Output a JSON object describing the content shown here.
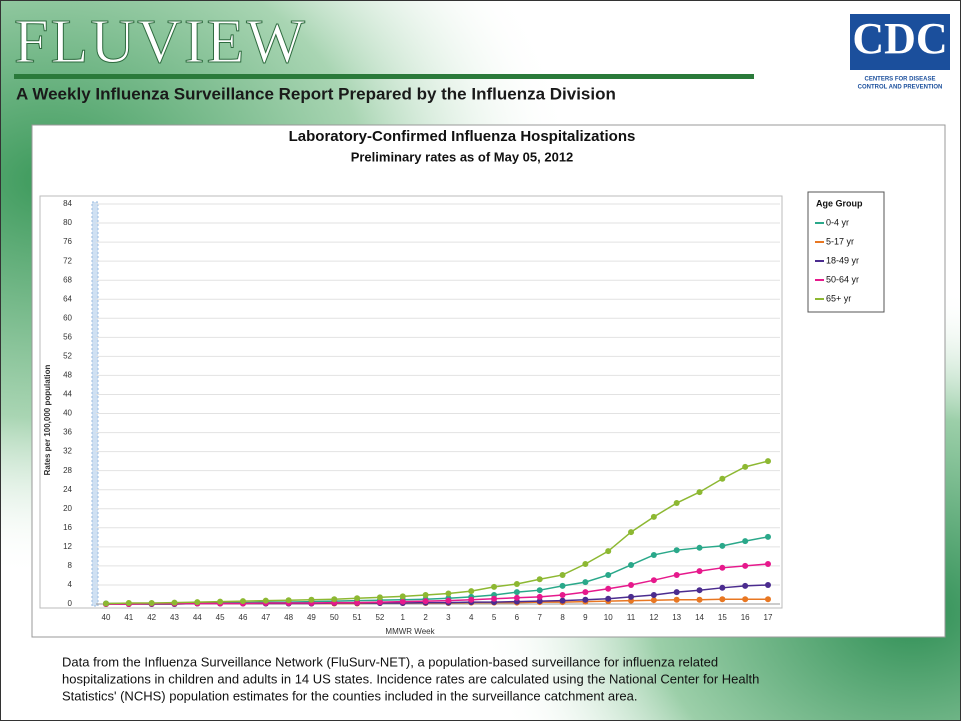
{
  "header": {
    "title": "FLUVIEW",
    "subtitle": "A Weekly Influenza Surveillance Report Prepared by the Influenza Division"
  },
  "logo": {
    "text": "CDC",
    "tagline": [
      "CENTERS FOR DISEASE",
      "CONTROL AND PREVENTION"
    ]
  },
  "chart_data": {
    "type": "line",
    "title": "Laboratory-Confirmed Influenza Hospitalizations",
    "subtitle": "Preliminary rates as of May 05, 2012",
    "x_label": "MMWR Week",
    "y_label": "Rates per 100,000 population",
    "legend_title": "Age Group",
    "legend_position": "right",
    "grid": true,
    "categories": [
      "40",
      "41",
      "42",
      "43",
      "44",
      "45",
      "46",
      "47",
      "48",
      "49",
      "50",
      "51",
      "52",
      "1",
      "2",
      "3",
      "4",
      "5",
      "6",
      "7",
      "8",
      "9",
      "10",
      "11",
      "12",
      "13",
      "14",
      "15",
      "16",
      "17"
    ],
    "ylim": [
      0,
      84
    ],
    "yticks": [
      0,
      4,
      8,
      12,
      16,
      20,
      24,
      28,
      32,
      36,
      40,
      44,
      48,
      52,
      56,
      60,
      64,
      68,
      72,
      76,
      80,
      84
    ],
    "series": [
      {
        "name": "0-4 yr",
        "color": "#2aa88a",
        "values": [
          0.1,
          0.1,
          0.1,
          0.2,
          0.2,
          0.3,
          0.3,
          0.4,
          0.4,
          0.5,
          0.6,
          0.7,
          0.8,
          0.9,
          1.0,
          1.2,
          1.5,
          1.9,
          2.5,
          2.9,
          3.8,
          4.6,
          6.1,
          8.2,
          10.3,
          11.3,
          11.8,
          12.2,
          13.2,
          14.1
        ]
      },
      {
        "name": "5-17 yr",
        "color": "#e87722",
        "values": [
          0.0,
          0.0,
          0.0,
          0.0,
          0.1,
          0.1,
          0.1,
          0.1,
          0.1,
          0.1,
          0.1,
          0.1,
          0.2,
          0.2,
          0.2,
          0.2,
          0.3,
          0.3,
          0.3,
          0.4,
          0.4,
          0.5,
          0.6,
          0.7,
          0.8,
          0.9,
          0.9,
          1.0,
          1.0,
          1.0
        ]
      },
      {
        "name": "18-49 yr",
        "color": "#4b2c8f",
        "values": [
          0.0,
          0.0,
          0.0,
          0.0,
          0.1,
          0.1,
          0.1,
          0.1,
          0.1,
          0.1,
          0.2,
          0.2,
          0.2,
          0.2,
          0.3,
          0.3,
          0.4,
          0.4,
          0.5,
          0.6,
          0.7,
          0.9,
          1.1,
          1.5,
          1.9,
          2.5,
          2.9,
          3.4,
          3.8,
          4.0
        ]
      },
      {
        "name": "50-64 yr",
        "color": "#e6198c",
        "values": [
          0.0,
          0.0,
          0.1,
          0.1,
          0.1,
          0.1,
          0.1,
          0.2,
          0.2,
          0.2,
          0.3,
          0.3,
          0.4,
          0.5,
          0.6,
          0.7,
          0.9,
          1.1,
          1.3,
          1.5,
          1.9,
          2.5,
          3.2,
          4.0,
          5.0,
          6.1,
          6.9,
          7.6,
          8.0,
          8.4
        ]
      },
      {
        "name": "65+ yr",
        "color": "#8db832",
        "values": [
          0.1,
          0.2,
          0.2,
          0.3,
          0.4,
          0.5,
          0.6,
          0.7,
          0.8,
          0.9,
          1.0,
          1.2,
          1.4,
          1.6,
          1.9,
          2.2,
          2.7,
          3.6,
          4.2,
          5.2,
          6.1,
          8.4,
          11.1,
          15.1,
          18.3,
          21.2,
          23.5,
          26.3,
          28.8,
          30.0
        ]
      }
    ]
  },
  "footnote": [
    "Data from the Influenza  Surveillance Network (FluSurv-NET),  a population-based surveillance  for influenza related",
    "hospitalizations in children and adults in 14 US states.  Incidence rates are calculated using the National Center for Health",
    "Statistics' (NCHS) population estimates for the counties included in the surveillance  catchment area."
  ]
}
